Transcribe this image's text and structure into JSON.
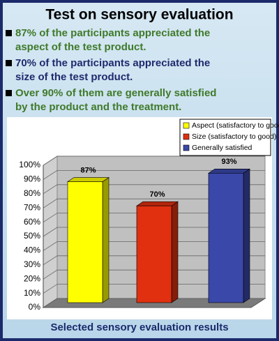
{
  "title": "Test on sensory evaluation",
  "bullets": [
    {
      "lines": [
        "87% of the participants appreciated the",
        "aspect of the test product."
      ],
      "color": "#3f7a2a"
    },
    {
      "lines": [
        "70% of the participants appreciated the",
        "size of the test product."
      ],
      "color": "#1f2a6e"
    },
    {
      "lines": [
        "Over 90% of them are generally satisfied",
        "by the product and the treatment."
      ],
      "color": "#3f7a2a"
    }
  ],
  "caption": "Selected sensory evaluation results",
  "chart_data": {
    "type": "bar3d",
    "categories": [
      null
    ],
    "series": [
      {
        "name": "Aspect (satisfactory to good)",
        "color": "#ffff00",
        "values": [
          87
        ],
        "value_labels": [
          "87%"
        ]
      },
      {
        "name": "Size (satisfactory to good)",
        "color": "#e0300f",
        "values": [
          70
        ],
        "value_labels": [
          "70%"
        ]
      },
      {
        "name": "Generally satisfied",
        "color": "#3a48aa",
        "values": [
          93
        ],
        "value_labels": [
          "93%"
        ]
      }
    ],
    "ylim": [
      0,
      100
    ],
    "yticks": [
      {
        "value": 0,
        "label": "0%"
      },
      {
        "value": 10,
        "label": "10%"
      },
      {
        "value": 20,
        "label": "20%"
      },
      {
        "value": 30,
        "label": "30%"
      },
      {
        "value": 40,
        "label": "40%"
      },
      {
        "value": 50,
        "label": "50%"
      },
      {
        "value": 60,
        "label": "60%"
      },
      {
        "value": 70,
        "label": "70%"
      },
      {
        "value": 80,
        "label": "80%"
      },
      {
        "value": 90,
        "label": "90%"
      },
      {
        "value": 100,
        "label": "100%"
      }
    ],
    "grid": true,
    "legend": "top-right"
  }
}
